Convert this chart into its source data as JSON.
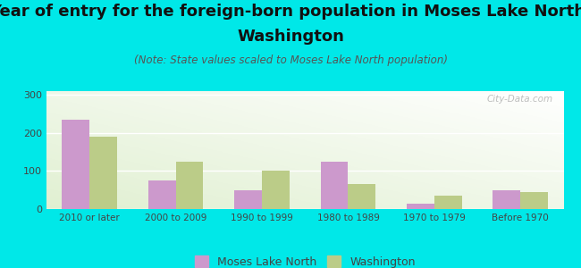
{
  "categories": [
    "2010 or later",
    "2000 to 2009",
    "1990 to 1999",
    "1980 to 1989",
    "1970 to 1979",
    "Before 1970"
  ],
  "moses_lake_north": [
    235,
    75,
    50,
    125,
    15,
    50
  ],
  "washington": [
    190,
    125,
    100,
    65,
    35,
    45
  ],
  "moses_color": "#cc99cc",
  "washington_color": "#bbcc88",
  "title_line1": "Year of entry for the foreign-born population in Moses Lake North,",
  "title_line2": "Washington",
  "subtitle": "(Note: State values scaled to Moses Lake North population)",
  "legend_moses": "Moses Lake North",
  "legend_washington": "Washington",
  "ylim": [
    0,
    310
  ],
  "yticks": [
    0,
    100,
    200,
    300
  ],
  "background_outer": "#00e8e8",
  "watermark": "City-Data.com",
  "bar_width": 0.32,
  "title_fontsize": 13,
  "subtitle_fontsize": 8.5
}
